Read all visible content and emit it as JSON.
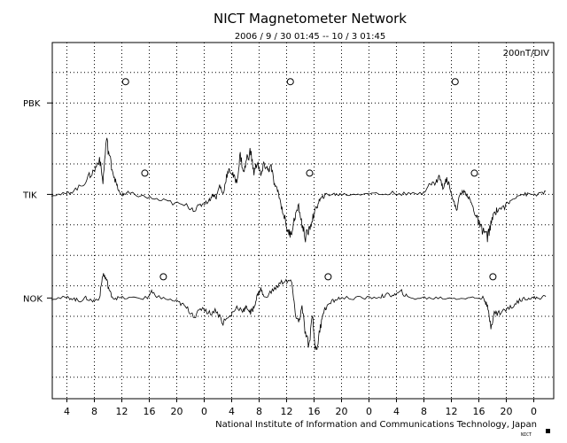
{
  "chart_data": {
    "type": "line",
    "title": "NICT Magnetometer Network",
    "subtitle": "2006 / 9 / 30   01:45 -- 10 / 3   01:45",
    "scale_label": "200nT/DIV",
    "credit": "National Institute of Information and Communications Technology, Japan",
    "corner_mark": "NICT",
    "grid": true,
    "x_hours_span": 72,
    "x_tick_labels": [
      "4",
      "8",
      "12",
      "16",
      "20",
      "0",
      "4",
      "8",
      "12",
      "16",
      "20",
      "0",
      "4",
      "8",
      "12",
      "16",
      "20",
      "0"
    ],
    "stations": [
      {
        "name": "PBK",
        "baseline_div": 7,
        "midnight_marker_hours": [
          10.8,
          34.8,
          58.8
        ],
        "x": [],
        "y": []
      },
      {
        "name": "TIK",
        "baseline_div": 4,
        "midnight_marker_hours": [
          13.6,
          37.6,
          61.6
        ],
        "x": [
          0,
          2,
          3,
          4.5,
          5.5,
          6.3,
          7,
          7.5,
          8,
          8.5,
          9,
          9.5,
          10,
          10.5,
          11,
          12,
          14,
          16,
          18,
          20,
          21,
          22,
          23,
          23.5,
          24,
          24.5,
          25,
          25.5,
          26,
          26.5,
          27,
          27.5,
          28,
          28.5,
          29,
          29.5,
          30,
          30.5,
          31,
          31.5,
          32,
          32.5,
          33,
          33.5,
          34,
          34.5,
          35,
          35.5,
          36,
          36.5,
          37,
          37.5,
          38,
          38.5,
          39,
          39.5,
          40,
          41,
          42,
          44,
          46,
          48,
          50,
          52,
          54,
          55,
          56,
          56.5,
          57,
          57.5,
          58,
          58.5,
          59,
          59.5,
          60,
          60.5,
          61,
          61.5,
          62,
          62.5,
          63,
          63.5,
          64,
          64.5,
          65,
          66,
          67,
          68,
          69,
          70,
          71,
          72
        ],
        "y": [
          0,
          0,
          0.1,
          0.3,
          0.6,
          0.8,
          1.2,
          0.4,
          1.8,
          1.2,
          0.7,
          0.3,
          0,
          0,
          0.05,
          0,
          -0.1,
          -0.2,
          -0.3,
          -0.4,
          -0.5,
          -0.3,
          -0.2,
          0,
          -0.1,
          0.3,
          0,
          0.6,
          0.8,
          0.6,
          0.4,
          1.3,
          0.7,
          1.2,
          1.4,
          0.7,
          1.1,
          0.6,
          1.0,
          0.8,
          0.9,
          0.3,
          0.1,
          -0.4,
          -0.8,
          -1.3,
          -1.2,
          -0.7,
          -0.4,
          -1.0,
          -1.4,
          -1.2,
          -0.8,
          -0.5,
          -0.2,
          -0.1,
          0,
          0,
          0,
          0,
          0.05,
          0,
          0.05,
          0,
          0.05,
          0.3,
          0.4,
          0.6,
          0.2,
          0.5,
          0.3,
          -0.2,
          -0.5,
          0,
          0.1,
          0,
          -0.2,
          -0.5,
          -0.8,
          -1.1,
          -1.2,
          -1.4,
          -1.0,
          -0.6,
          -0.5,
          -0.4,
          -0.2,
          0,
          0,
          0,
          0,
          0.1
        ]
      },
      {
        "name": "NOK",
        "baseline_div": 0.6,
        "midnight_marker_hours": [
          16.3,
          40.3,
          64.3
        ],
        "x": [
          0,
          2,
          3,
          4,
          5,
          6,
          7,
          7.5,
          8,
          8.5,
          9,
          10,
          12,
          14,
          14.5,
          15,
          16,
          18,
          19,
          20,
          21,
          22,
          23,
          24,
          25,
          26,
          27,
          28,
          28.5,
          29,
          29.5,
          30,
          30.5,
          31,
          32,
          33,
          34,
          35,
          35.5,
          36,
          36.5,
          37,
          37.5,
          38,
          38.5,
          39,
          39.5,
          40,
          41,
          42,
          44,
          46,
          48,
          49,
          50,
          51,
          52,
          54,
          56,
          58,
          60,
          62,
          63,
          63.5,
          64,
          64.5,
          65,
          66,
          67,
          68,
          69,
          70,
          71,
          72
        ],
        "y": [
          0,
          0,
          0,
          -0.1,
          0,
          -0.1,
          0,
          0.8,
          0.6,
          0.2,
          0,
          0,
          0,
          0,
          0.2,
          0.1,
          0,
          -0.1,
          -0.2,
          -0.4,
          -0.6,
          -0.3,
          -0.5,
          -0.4,
          -0.8,
          -0.6,
          -0.3,
          -0.4,
          -0.3,
          -0.5,
          -0.3,
          0.1,
          0.3,
          0,
          0.2,
          0.4,
          0.6,
          0.5,
          -0.5,
          -0.8,
          -0.3,
          -1.2,
          -1.6,
          -0.5,
          -1.8,
          -1.2,
          -0.5,
          -0.3,
          -0.1,
          0,
          0,
          0,
          0.05,
          0.1,
          0.1,
          0.2,
          0,
          0,
          0,
          0,
          0,
          0,
          0,
          -0.3,
          -0.9,
          -0.5,
          -0.5,
          -0.4,
          -0.3,
          -0.1,
          0,
          0,
          0,
          0.05
        ]
      }
    ]
  }
}
